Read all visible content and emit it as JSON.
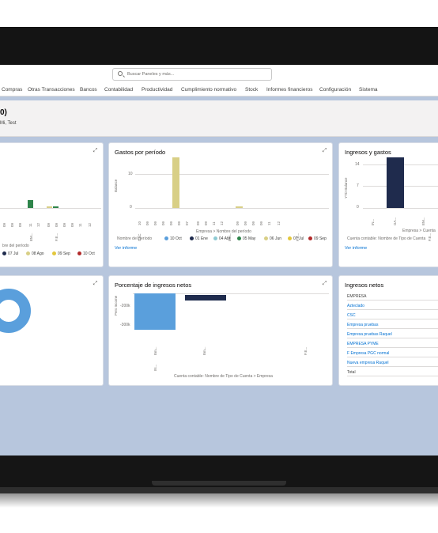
{
  "search": {
    "placeholder": "Buscar Paneles y más..."
  },
  "nav": [
    "Compras",
    "Otras Transacciones",
    "Bancos",
    "Contabilidad",
    "Productividad",
    "Cumplimiento normativo",
    "Stock",
    "Informes financieros",
    "Configuración",
    "Sistema"
  ],
  "header": {
    "title": "0)",
    "subtitle": "Mi, Test"
  },
  "card_left": {
    "xticks": [
      "09",
      "09",
      "09",
      "11",
      "12",
      "09",
      "09",
      "09",
      "09",
      "11",
      "12"
    ],
    "axis_title": "bre del período",
    "xcats": [
      "EM...",
      "F.E..."
    ],
    "legend": [
      "07 Jul",
      "08 Ago",
      "09 Sep",
      "10 Oct"
    ]
  },
  "gastos": {
    "title": "Gastos por período",
    "ylabel": "Balance",
    "yticks": [
      "10",
      "0"
    ],
    "xticks": [
      "10",
      "09",
      "09",
      "09",
      "09",
      "09",
      "07",
      "09",
      "09",
      "11",
      "12",
      "09",
      "09",
      "09",
      "09",
      "11",
      "12"
    ],
    "xcats": [
      "CSC",
      "EM...",
      "F.E..."
    ],
    "axis_title": "Empresa > Nombre del período",
    "legend_title": "Nombre del período",
    "legend": [
      "10 Oct",
      "01 Ene",
      "04 Abr",
      "05 May",
      "06 Jun",
      "07 Jul",
      "09 Sep"
    ],
    "link": "Ver informe"
  },
  "ingresos_gastos": {
    "title": "Ingresos y gastos",
    "ylabel": "YTD Balance",
    "yticks": [
      "14",
      "7",
      "0"
    ],
    "xticks": [
      "IN...",
      "GA..."
    ],
    "xcats": [
      "EM...",
      "F.E..."
    ],
    "axis_title": "Empresa > Cuenta",
    "legend_title": "Cuenta contable: Nombre de Tipo de Cuenta",
    "link": "Ver informe"
  },
  "porcentaje": {
    "title": "Porcentaje de ingresos netos",
    "ylabel": "Pers Income",
    "yticks": [
      "-200k",
      "-300k"
    ],
    "xticks": [
      "Em...",
      "Em...",
      "F.E..."
    ],
    "xcats": [
      "IN..."
    ],
    "axis_title": "Cuenta contable: Nombre de Tipo de Cuenta > Empresa"
  },
  "ingresos_netos": {
    "title": "Ingresos netos",
    "header": "EMPRESA",
    "rows": [
      "Azteclado",
      "CSC",
      "Empresa pruebas",
      "Empresa pruebas Raquel",
      "EMPRESA PYME",
      "F Empresa PGC normal",
      "Nueva empresa Raquel"
    ],
    "total": "Total"
  },
  "colors": {
    "screen_bg": "#b7c6dd",
    "green": "#2e844a",
    "khaki": "#d8cf86",
    "navy": "#1f2b4d",
    "blue": "#5a9fdc",
    "teal": "#8ecad3",
    "yellow": "#e3c73c",
    "red": "#b22a2a"
  }
}
